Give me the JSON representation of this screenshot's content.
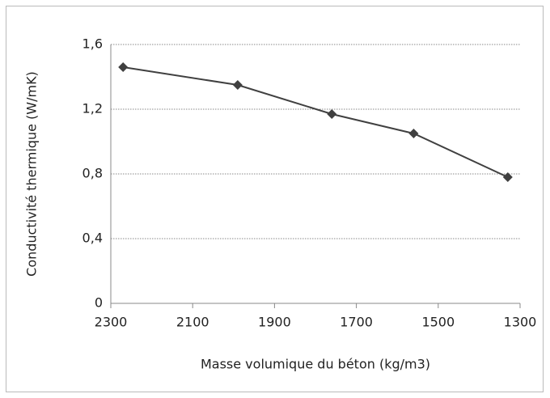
{
  "chart_data": {
    "type": "line",
    "x_label": "Masse volumique  du béton (kg/m3)",
    "y_label": "Conductivité thermique (W/mK)",
    "x": [
      2270,
      1990,
      1760,
      1560,
      1330
    ],
    "series": [
      {
        "name": "Conductivité thermique",
        "color": "#404040",
        "values": [
          1.46,
          1.35,
          1.17,
          1.05,
          0.78
        ]
      }
    ],
    "xlim": [
      2300,
      1300
    ],
    "xticks": [
      2300,
      2100,
      1900,
      1700,
      1500,
      1300
    ],
    "ylim": [
      0,
      1.6
    ],
    "yticks": [
      0,
      {
        "value": 0.4,
        "label": "0,4"
      },
      {
        "value": 0.8,
        "label": "0,8"
      },
      {
        "value": 1.2,
        "label": "1,2"
      },
      {
        "value": 1.6,
        "label": "1,6"
      }
    ],
    "grid": true
  }
}
